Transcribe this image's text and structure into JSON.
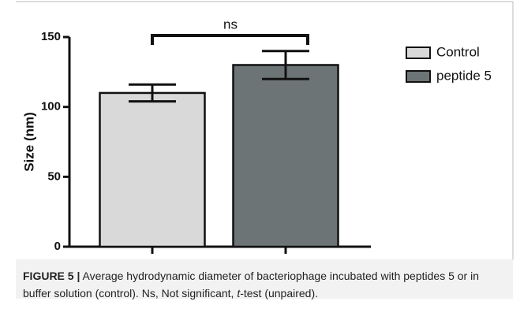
{
  "chart_data": {
    "type": "bar",
    "ylabel": "Size (nm)",
    "series": [
      {
        "name": "Control",
        "color": "#d9d9d9",
        "values": [
          110
        ],
        "errors": [
          6
        ]
      },
      {
        "name": "peptide 5",
        "color": "#6d7476",
        "values": [
          130
        ],
        "errors": [
          10
        ]
      }
    ],
    "ylim": [
      0,
      150
    ],
    "yticks": [
      0,
      50,
      100,
      150
    ],
    "annotation": "ns",
    "legend": "right"
  },
  "caption": {
    "label": "FIGURE 5 |",
    "parts": [
      "Average hydrodynamic diameter of bacteriophage incubated with peptides 5 or in buffer solution (control). Ns, Not significant, ",
      "t",
      "-test (unpaired)."
    ]
  }
}
